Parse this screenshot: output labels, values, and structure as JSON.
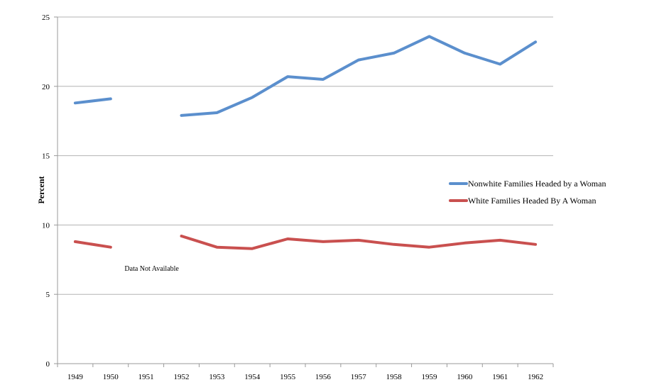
{
  "chart_data": {
    "type": "line",
    "title": "",
    "xlabel": "",
    "ylabel": "Percent",
    "categories": [
      "1949",
      "1950",
      "1951",
      "1952",
      "1953",
      "1954",
      "1955",
      "1956",
      "1957",
      "1958",
      "1959",
      "1960",
      "1961",
      "1962"
    ],
    "yticks": [
      "0",
      "5",
      "10",
      "15",
      "20",
      "25"
    ],
    "ylim": [
      0,
      25
    ],
    "grid": true,
    "legend_position": "right",
    "series": [
      {
        "name": "Nonwhite Families Headed by a Woman",
        "color": "#5b8fcd",
        "values": [
          18.8,
          19.1,
          null,
          17.9,
          18.1,
          19.2,
          20.7,
          20.5,
          21.9,
          22.4,
          23.6,
          22.4,
          21.6,
          23.2
        ]
      },
      {
        "name": "White Families Headed By A Woman",
        "color": "#c9504f",
        "values": [
          8.8,
          8.4,
          null,
          9.2,
          8.4,
          8.3,
          9.0,
          8.8,
          8.9,
          8.6,
          8.4,
          8.7,
          8.9,
          8.6
        ]
      }
    ],
    "annotations": [
      {
        "text": "Data Not Available",
        "category": "1951"
      }
    ]
  }
}
